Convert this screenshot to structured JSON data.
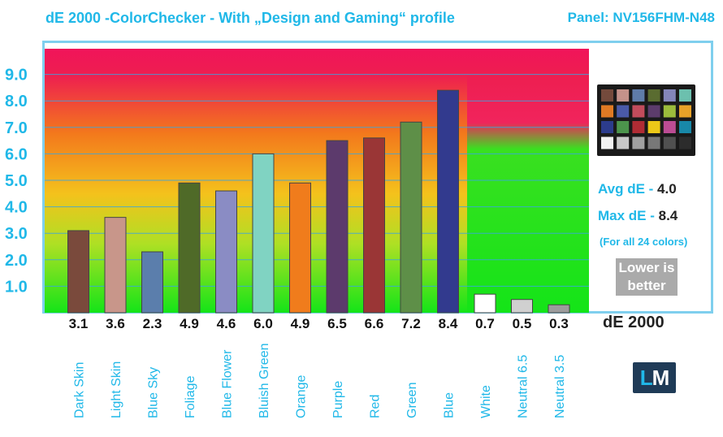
{
  "header": {
    "title": "dE 2000 -ColorChecker - With „Design and Gaming“ profile",
    "panel": "Panel: NV156FHM-N48"
  },
  "side_panel": {
    "avg_label": "Avg dE - ",
    "avg_value": "4.0",
    "max_label": "Max dE - ",
    "max_value": "8.4",
    "note": "(For all 24 colors)",
    "lower_line1": "Lower is",
    "lower_line2": "better",
    "unit": "dE 2000",
    "logo_l": "L",
    "logo_m": "M"
  },
  "colors": {
    "accent": "#20b8e8",
    "logo_bg": "#1f3b57"
  },
  "chart_data": {
    "type": "bar",
    "title": "dE 2000 -ColorChecker - With „Design and Gaming“ profile",
    "categories": [
      "Dark Skin",
      "Light Skin",
      "Blue Sky",
      "Foliage",
      "Blue Flower",
      "Bluish Green",
      "Orange",
      "Purple",
      "Red",
      "Green",
      "Blue",
      "White",
      "Neutral 6.5",
      "Neutral 3.5"
    ],
    "values": [
      3.1,
      3.6,
      2.3,
      4.9,
      4.6,
      6.0,
      4.9,
      6.5,
      6.6,
      7.2,
      8.4,
      0.7,
      0.5,
      0.3
    ],
    "value_labels": [
      "3.1",
      "3.6",
      "2.3",
      "4.9",
      "4.6",
      "6.0",
      "4.9",
      "6.5",
      "6.6",
      "7.2",
      "8.4",
      "0.7",
      "0.5",
      "0.3"
    ],
    "bar_colors": [
      "#7a4a3c",
      "#c8968a",
      "#5b7eac",
      "#4f6a28",
      "#8a8cc4",
      "#80d3c2",
      "#f07c1c",
      "#5c3a6c",
      "#9a3636",
      "#5e8f48",
      "#323a8e",
      "#ffffff",
      "#d0d0d0",
      "#9c9c9c"
    ],
    "yticks": [
      "1.0",
      "2.0",
      "3.0",
      "4.0",
      "5.0",
      "6.0",
      "7.0",
      "8.0",
      "9.0"
    ],
    "ylim": [
      0,
      10
    ],
    "grid": true,
    "background": "gradient from green (low) through yellow and orange to red (high)"
  }
}
